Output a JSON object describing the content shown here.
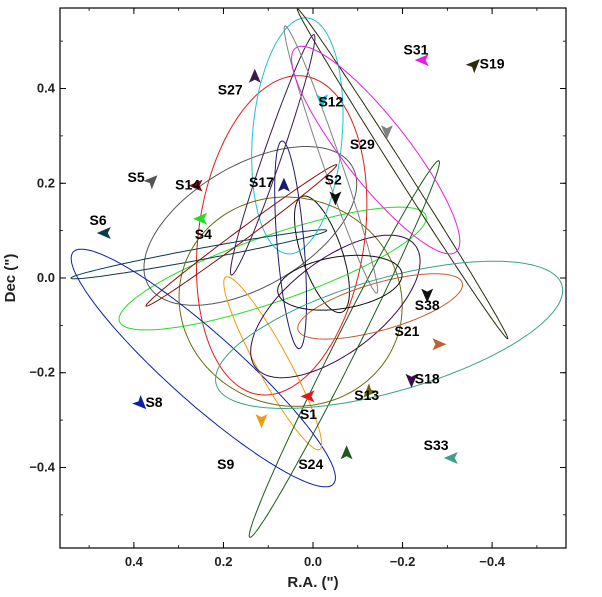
{
  "chart_data": {
    "type": "scatter",
    "title": "",
    "xlabel": "R.A. (\")",
    "ylabel": "Dec (\")",
    "xlim": [
      0.565,
      -0.565
    ],
    "ylim": [
      -0.57,
      0.57
    ],
    "xticks": [
      0.4,
      0.2,
      0.0,
      -0.2,
      -0.4
    ],
    "xtick_labels": [
      "0.4",
      "0.2",
      "0.0",
      "−0.2",
      "−0.4"
    ],
    "yticks": [
      0.4,
      0.2,
      0.0,
      -0.2,
      -0.4
    ],
    "ytick_labels": [
      "0.4",
      "0.2",
      "0.0",
      "−0.2",
      "−0.4"
    ],
    "grid": false,
    "legend": "none",
    "series": [
      {
        "name": "S1",
        "color": "#e01b1b",
        "label_xy": [
          0.01,
          -0.29
        ],
        "arrow_xy": [
          0.01,
          -0.25
        ],
        "arrow_dir": [
          1,
          0
        ],
        "orbit": {
          "cx": 0.07,
          "cy": 0.09,
          "a": 0.34,
          "b": 0.185,
          "rot": 99
        }
      },
      {
        "name": "S2",
        "color": "#111111",
        "label_xy": [
          -0.045,
          0.205
        ],
        "arrow_xy": [
          -0.05,
          0.17
        ],
        "arrow_dir": [
          0,
          -1
        ],
        "orbit": {
          "cx": -0.02,
          "cy": 0.05,
          "a": 0.13,
          "b": 0.045,
          "rot": 70
        }
      },
      {
        "name": "S4",
        "color": "#22dd22",
        "label_xy": [
          0.245,
          0.09
        ],
        "arrow_xy": [
          0.25,
          0.125
        ],
        "arrow_dir": [
          1,
          0
        ],
        "orbit": {
          "cx": 0.09,
          "cy": 0.02,
          "a": 0.36,
          "b": 0.07,
          "rot": -18
        }
      },
      {
        "name": "S5",
        "color": "#555555",
        "label_xy": [
          0.395,
          0.21
        ],
        "arrow_xy": [
          0.36,
          0.205
        ],
        "arrow_dir": [
          -1,
          1
        ],
        "orbit": {
          "cx": 0.14,
          "cy": 0.11,
          "a": 0.26,
          "b": 0.13,
          "rot": -28
        }
      },
      {
        "name": "S6",
        "color": "#0c3a4a",
        "label_xy": [
          0.48,
          0.12
        ],
        "arrow_xy": [
          0.465,
          0.095
        ],
        "arrow_dir": [
          1,
          0
        ],
        "orbit": {
          "cx": 0.255,
          "cy": 0.05,
          "a": 0.29,
          "b": 0.012,
          "rot": -10
        }
      },
      {
        "name": "S8",
        "color": "#0d1fa8",
        "label_xy": [
          0.355,
          -0.265
        ],
        "arrow_xy": [
          0.385,
          -0.265
        ],
        "arrow_dir": [
          -1,
          -1
        ],
        "orbit": {
          "cx": 0.245,
          "cy": -0.19,
          "a": 0.38,
          "b": 0.075,
          "rot": 40
        }
      },
      {
        "name": "S9",
        "color": "#f09a10",
        "label_xy": [
          0.195,
          -0.395
        ],
        "arrow_xy": [
          0.115,
          -0.3
        ],
        "arrow_dir": [
          0,
          -1
        ],
        "orbit": {
          "cx": 0.09,
          "cy": -0.18,
          "a": 0.21,
          "b": 0.035,
          "rot": 60
        }
      },
      {
        "name": "S12",
        "color": "#20c0d0",
        "label_xy": [
          -0.04,
          0.37
        ],
        "arrow_xy": [
          -0.02,
          0.375
        ],
        "arrow_dir": [
          0,
          -1
        ],
        "orbit": {
          "cx": 0.035,
          "cy": 0.3,
          "a": 0.25,
          "b": 0.1,
          "rot": 95
        }
      },
      {
        "name": "S13",
        "color": "#6b6b10",
        "label_xy": [
          -0.12,
          -0.25
        ],
        "arrow_xy": [
          -0.125,
          -0.24
        ],
        "arrow_dir": [
          1,
          -1
        ],
        "orbit": {
          "cx": 0.05,
          "cy": -0.05,
          "a": 0.25,
          "b": 0.22,
          "rot": 10
        }
      },
      {
        "name": "S14",
        "color": "#8b0d0d",
        "label_xy": [
          0.28,
          0.195
        ],
        "arrow_xy": [
          0.26,
          0.195
        ],
        "arrow_dir": [
          1,
          0
        ],
        "orbit": {
          "cx": 0.16,
          "cy": 0.09,
          "a": 0.26,
          "b": 0.012,
          "rot": -35
        }
      },
      {
        "name": "S17",
        "color": "#1a1a6a",
        "label_xy": [
          0.115,
          0.2
        ],
        "arrow_xy": [
          0.065,
          0.195
        ],
        "arrow_dir": [
          0,
          1
        ],
        "orbit": {
          "cx": 0.05,
          "cy": 0.07,
          "a": 0.22,
          "b": 0.03,
          "rot": 85
        }
      },
      {
        "name": "S18",
        "color": "#3a0a4a",
        "label_xy": [
          -0.255,
          -0.215
        ],
        "arrow_xy": [
          -0.22,
          -0.215
        ],
        "arrow_dir": [
          0,
          -1
        ],
        "orbit": {
          "cx": -0.05,
          "cy": -0.06,
          "a": 0.22,
          "b": 0.1,
          "rot": -35
        }
      },
      {
        "name": "S19",
        "color": "#2c2c0a",
        "label_xy": [
          -0.4,
          0.45
        ],
        "arrow_xy": [
          -0.36,
          0.45
        ],
        "arrow_dir": [
          -1,
          1
        ],
        "orbit": {
          "cx": -0.2,
          "cy": 0.22,
          "a": 0.42,
          "b": 0.012,
          "rot": 56
        }
      },
      {
        "name": "S21",
        "color": "#c06030",
        "label_xy": [
          -0.21,
          -0.115
        ],
        "arrow_xy": [
          -0.28,
          -0.14
        ],
        "arrow_dir": [
          -1,
          0
        ],
        "orbit": {
          "cx": -0.15,
          "cy": -0.06,
          "a": 0.19,
          "b": 0.05,
          "rot": -15
        }
      },
      {
        "name": "S24",
        "color": "#1a5a1a",
        "label_xy": [
          0.005,
          -0.395
        ],
        "arrow_xy": [
          -0.075,
          -0.37
        ],
        "arrow_dir": [
          0,
          1
        ],
        "orbit": {
          "cx": -0.07,
          "cy": -0.15,
          "a": 0.45,
          "b": 0.025,
          "rot": -62
        }
      },
      {
        "name": "S27",
        "color": "#3a1a4a",
        "label_xy": [
          0.185,
          0.395
        ],
        "arrow_xy": [
          0.13,
          0.425
        ],
        "arrow_dir": [
          0,
          1
        ],
        "orbit": {
          "cx": 0.09,
          "cy": 0.26,
          "a": 0.27,
          "b": 0.02,
          "rot": -70
        }
      },
      {
        "name": "S29",
        "color": "#808080",
        "label_xy": [
          -0.11,
          0.28
        ],
        "arrow_xy": [
          -0.165,
          0.31
        ],
        "arrow_dir": [
          0,
          -1
        ],
        "orbit": {
          "cx": -0.04,
          "cy": 0.25,
          "a": 0.3,
          "b": 0.02,
          "rot": 70
        }
      },
      {
        "name": "S31",
        "color": "#e020e0",
        "label_xy": [
          -0.23,
          0.48
        ],
        "arrow_xy": [
          -0.245,
          0.46
        ],
        "arrow_dir": [
          1,
          0
        ],
        "orbit": {
          "cx": -0.14,
          "cy": 0.27,
          "a": 0.28,
          "b": 0.07,
          "rot": 50
        }
      },
      {
        "name": "S33",
        "color": "#3aa08a",
        "label_xy": [
          -0.275,
          -0.355
        ],
        "arrow_xy": [
          -0.31,
          -0.38
        ],
        "arrow_dir": [
          1,
          0
        ],
        "orbit": {
          "cx": -0.17,
          "cy": -0.12,
          "a": 0.4,
          "b": 0.12,
          "rot": -15
        }
      },
      {
        "name": "S38",
        "color": "#101010",
        "label_xy": [
          -0.255,
          -0.06
        ],
        "arrow_xy": [
          -0.255,
          -0.035
        ],
        "arrow_dir": [
          0,
          -1
        ],
        "orbit": {
          "cx": -0.06,
          "cy": -0.01,
          "a": 0.14,
          "b": 0.055,
          "rot": -8
        }
      }
    ]
  }
}
